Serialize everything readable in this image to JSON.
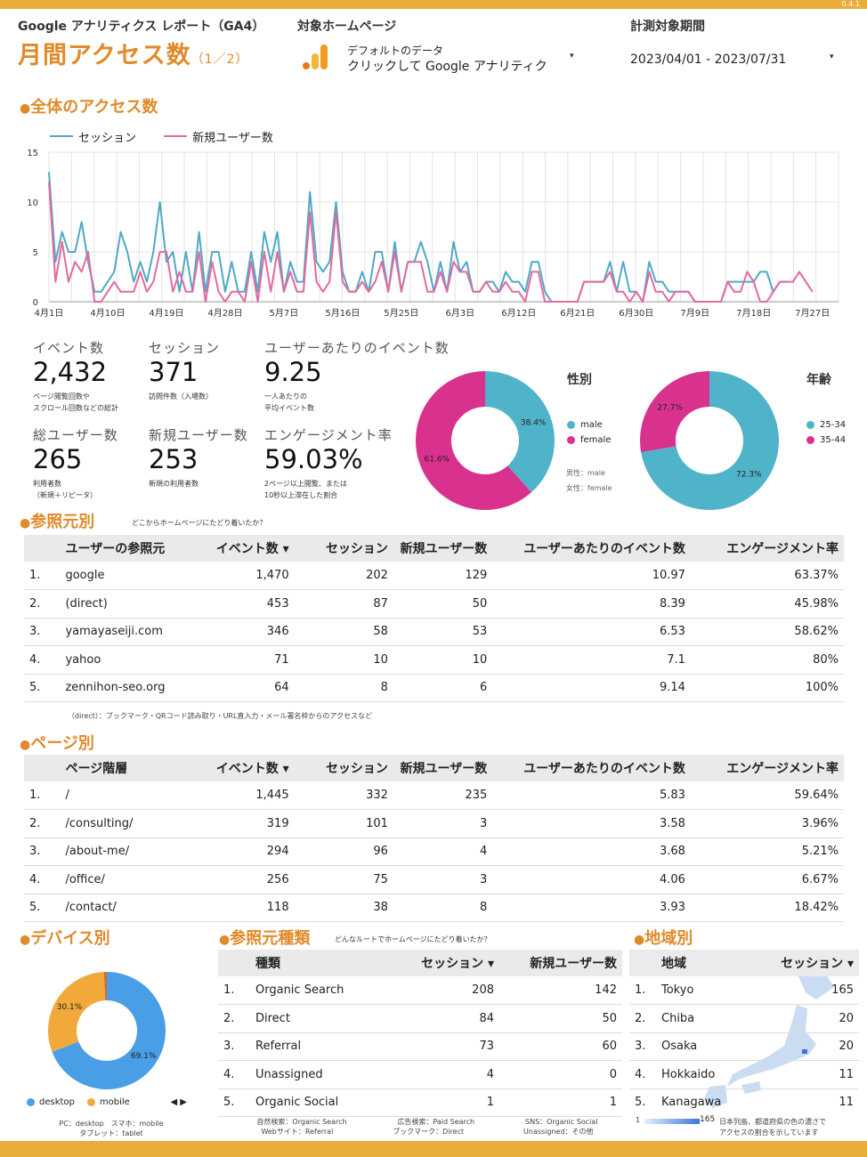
{
  "version": "0.4.1",
  "header": {
    "report_label": "Google アナリティクス レポート（GA4）",
    "title": "月間アクセス数",
    "title_page": "（1／2）",
    "target_label": "対象ホームページ",
    "target_line1": "デフォルトのデータ",
    "target_line2": "クリックして Google アナリティク",
    "period_label": "計測対象期間",
    "period_value": "2023/04/01 - 2023/07/31",
    "dropdown_glyph": "▾"
  },
  "overall": {
    "title": "全体のアクセス数"
  },
  "chart_data": [
    {
      "type": "line",
      "x_dates": [
        "2023-04-01",
        "2023-04-02",
        "2023-04-03",
        "2023-04-04",
        "2023-04-05",
        "2023-04-06",
        "2023-04-07",
        "2023-04-08",
        "2023-04-09",
        "2023-04-10",
        "2023-04-11",
        "2023-04-12",
        "2023-04-13",
        "2023-04-14",
        "2023-04-15",
        "2023-04-16",
        "2023-04-17",
        "2023-04-18",
        "2023-04-19",
        "2023-04-20",
        "2023-04-21",
        "2023-04-22",
        "2023-04-23",
        "2023-04-24",
        "2023-04-25",
        "2023-04-26",
        "2023-04-27",
        "2023-04-28",
        "2023-04-29",
        "2023-04-30",
        "2023-05-01",
        "2023-05-02",
        "2023-05-03",
        "2023-05-04",
        "2023-05-05",
        "2023-05-06",
        "2023-05-07",
        "2023-05-08",
        "2023-05-09",
        "2023-05-10",
        "2023-05-11",
        "2023-05-12",
        "2023-05-13",
        "2023-05-14",
        "2023-05-15",
        "2023-05-16",
        "2023-05-17",
        "2023-05-18",
        "2023-05-19",
        "2023-05-20",
        "2023-05-21",
        "2023-05-22",
        "2023-05-23",
        "2023-05-24",
        "2023-05-25",
        "2023-05-26",
        "2023-05-27",
        "2023-05-28",
        "2023-05-29",
        "2023-05-30",
        "2023-05-31",
        "2023-06-01",
        "2023-06-02",
        "2023-06-03",
        "2023-06-04",
        "2023-06-05",
        "2023-06-06",
        "2023-06-07",
        "2023-06-08",
        "2023-06-09",
        "2023-06-10",
        "2023-06-11",
        "2023-06-12",
        "2023-06-13",
        "2023-06-14",
        "2023-06-15",
        "2023-06-16",
        "2023-06-17",
        "2023-06-18",
        "2023-06-19",
        "2023-06-20",
        "2023-06-21",
        "2023-06-22",
        "2023-06-23",
        "2023-06-24",
        "2023-06-25",
        "2023-06-26",
        "2023-06-27",
        "2023-06-28",
        "2023-06-29",
        "2023-06-30",
        "2023-07-01",
        "2023-07-02",
        "2023-07-03",
        "2023-07-04",
        "2023-07-05",
        "2023-07-06",
        "2023-07-07",
        "2023-07-08",
        "2023-07-09",
        "2023-07-10",
        "2023-07-11",
        "2023-07-12",
        "2023-07-13",
        "2023-07-14",
        "2023-07-15",
        "2023-07-16",
        "2023-07-17",
        "2023-07-18",
        "2023-07-19",
        "2023-07-20",
        "2023-07-21",
        "2023-07-22",
        "2023-07-23",
        "2023-07-24",
        "2023-07-25",
        "2023-07-26",
        "2023-07-27",
        "2023-07-28",
        "2023-07-29",
        "2023-07-30",
        "2023-07-31"
      ],
      "x_tick_labels": [
        "4月1日",
        "4月10日",
        "4月19日",
        "4月28日",
        "5月7日",
        "5月16日",
        "5月25日",
        "6月3日",
        "6月12日",
        "6月21日",
        "6月30日",
        "7月9日",
        "7月18日",
        "7月27日"
      ],
      "series": [
        {
          "name": "セッション",
          "color": "#4fa9c6",
          "values": [
            13,
            4,
            7,
            5,
            5,
            8,
            4,
            1,
            1,
            2,
            3,
            7,
            5,
            2,
            4,
            2,
            5,
            10,
            4,
            5,
            1,
            5,
            1,
            7,
            1,
            5,
            5,
            1,
            4,
            1,
            1,
            5,
            1,
            7,
            4,
            7,
            1,
            4,
            2,
            2,
            11,
            4,
            3,
            4,
            10,
            3,
            1,
            1,
            3,
            1,
            5,
            5,
            1,
            6,
            1,
            4,
            4,
            6,
            4,
            1,
            4,
            1,
            6,
            3,
            4,
            1,
            1,
            2,
            2,
            1,
            3,
            2,
            2,
            1,
            4,
            4,
            1,
            0,
            0,
            0,
            0,
            0,
            2,
            2,
            2,
            2,
            4,
            1,
            4,
            1,
            1,
            0,
            4,
            2,
            2,
            1,
            1,
            1,
            1,
            0,
            0,
            0,
            0,
            0,
            2,
            2,
            2,
            2,
            2,
            3,
            3,
            1,
            2,
            2
          ]
        },
        {
          "name": "新規ユーザー数",
          "color": "#e26a9f",
          "values": [
            12,
            2,
            6,
            2,
            4,
            3,
            5,
            0,
            0,
            1,
            2,
            1,
            1,
            1,
            3,
            1,
            2,
            5,
            5,
            1,
            3,
            1,
            1,
            5,
            0,
            4,
            1,
            0,
            1,
            1,
            0,
            4,
            0,
            5,
            1,
            5,
            1,
            3,
            1,
            1,
            9,
            2,
            1,
            2,
            9,
            2,
            1,
            1,
            2,
            1,
            2,
            4,
            1,
            5,
            1,
            4,
            4,
            4,
            1,
            1,
            3,
            1,
            4,
            3,
            3,
            1,
            1,
            2,
            1,
            1,
            2,
            1,
            1,
            0,
            3,
            3,
            0,
            0,
            0,
            0,
            0,
            0,
            2,
            2,
            2,
            2,
            3,
            1,
            1,
            0,
            1,
            0,
            3,
            1,
            1,
            0,
            1,
            1,
            1,
            0,
            0,
            0,
            0,
            0,
            2,
            1,
            1,
            3,
            2,
            0,
            0,
            1,
            2,
            2,
            2,
            3,
            2,
            1
          ]
        }
      ],
      "ylim": [
        0,
        15
      ],
      "y_ticks": [
        0,
        5,
        10,
        15
      ],
      "grid": true,
      "legend": "top-left"
    },
    {
      "type": "pie",
      "title": "性別",
      "labels": [
        "male",
        "female"
      ],
      "values": [
        38.4,
        61.6
      ],
      "value_labels": [
        "38.4%",
        "61.6%"
      ],
      "colors": [
        "#4fb3c9",
        "#d9328e"
      ],
      "notes": [
        "男性：male",
        "女性：female"
      ]
    },
    {
      "type": "pie",
      "title": "年齢",
      "labels": [
        "25-34",
        "35-44"
      ],
      "values": [
        72.3,
        27.7
      ],
      "value_labels": [
        "72.3%",
        "27.7%"
      ],
      "colors": [
        "#4fb3c9",
        "#d9328e"
      ]
    },
    {
      "type": "pie",
      "labels": [
        "desktop",
        "mobile",
        "tablet"
      ],
      "values": [
        69.1,
        30.1,
        0.8
      ],
      "value_labels": [
        "69.1%",
        "30.1%",
        ""
      ],
      "colors": [
        "#4a9ee6",
        "#f0a93a",
        "#d46a3a"
      ],
      "legend_nav": "◀ ▶",
      "notes": [
        "PC：desktop　スマホ：mobile",
        "タブレット：tablet"
      ]
    },
    {
      "type": "table",
      "title": "参照元別",
      "note": "どこからホームページにたどり着いたか？",
      "columns": [
        "ユーザーの参照元",
        "イベント数 ▾",
        "セッション",
        "新規ユーザー数",
        "ユーザーあたりのイベント数",
        "エンゲージメント率"
      ],
      "rows": [
        [
          "1.",
          "google",
          "1,470",
          "202",
          "129",
          "10.97",
          "63.37%"
        ],
        [
          "2.",
          "(direct)",
          "453",
          "87",
          "50",
          "8.39",
          "45.98%"
        ],
        [
          "3.",
          "yamayaseiji.com",
          "346",
          "58",
          "53",
          "6.53",
          "58.62%"
        ],
        [
          "4.",
          "yahoo",
          "71",
          "10",
          "10",
          "7.1",
          "80%"
        ],
        [
          "5.",
          "zennihon-seo.org",
          "64",
          "8",
          "6",
          "9.14",
          "100%"
        ]
      ],
      "footnote": "（direct）：ブックマーク・QRコード読み取り・URL直入力・メール署名枠からのアクセスなど"
    },
    {
      "type": "table",
      "title": "ページ別",
      "columns": [
        "ページ階層",
        "イベント数 ▾",
        "セッション",
        "新規ユーザー数",
        "ユーザーあたりのイベント数",
        "エンゲージメント率"
      ],
      "rows": [
        [
          "1.",
          "/",
          "1,445",
          "332",
          "235",
          "5.83",
          "59.64%"
        ],
        [
          "2.",
          "/consulting/",
          "319",
          "101",
          "3",
          "3.58",
          "3.96%"
        ],
        [
          "3.",
          "/about-me/",
          "294",
          "96",
          "4",
          "3.68",
          "5.21%"
        ],
        [
          "4.",
          "/office/",
          "256",
          "75",
          "3",
          "4.06",
          "6.67%"
        ],
        [
          "5.",
          "/contact/",
          "118",
          "38",
          "8",
          "3.93",
          "18.42%"
        ]
      ]
    },
    {
      "type": "table",
      "title": "参照元種類",
      "note": "どんなルートでホームページにたどり着いたか？",
      "columns": [
        "種類",
        "セッション ▾",
        "新規ユーザー数"
      ],
      "rows": [
        [
          "1.",
          "Organic Search",
          "208",
          "142"
        ],
        [
          "2.",
          "Direct",
          "84",
          "50"
        ],
        [
          "3.",
          "Referral",
          "73",
          "60"
        ],
        [
          "4.",
          "Unassigned",
          "4",
          "0"
        ],
        [
          "5.",
          "Organic Social",
          "1",
          "1"
        ]
      ],
      "footnotes": [
        "自然検索：Organic Search",
        "広告検索：Paid Search",
        "SNS：Organic Social",
        "Webサイト：Referral",
        "ブックマーク：Direct",
        "Unassigned：その他"
      ]
    },
    {
      "type": "table",
      "title": "地域別",
      "columns": [
        "地域",
        "セッション ▾"
      ],
      "rows": [
        [
          "1.",
          "Tokyo",
          "165"
        ],
        [
          "2.",
          "Chiba",
          "20"
        ],
        [
          "3.",
          "Osaka",
          "20"
        ],
        [
          "4.",
          "Hokkaido",
          "11"
        ],
        [
          "5.",
          "Kanagawa",
          "11"
        ]
      ],
      "scale_min": "1",
      "scale_max": "165",
      "scale_note_1": "日本列島、都道府県の色の濃さで",
      "scale_note_2": "アクセスの割合を示しています"
    }
  ],
  "kpis": [
    {
      "label": "イベント数",
      "value": "2,432",
      "note1": "ページ閲覧回数や",
      "note2": "スクロール回数などの総計"
    },
    {
      "label": "セッション",
      "value": "371",
      "note1": "訪問件数（入場数）",
      "note2": ""
    },
    {
      "label": "ユーザーあたりのイベント数",
      "value": "9.25",
      "note1": "一人あたりの",
      "note2": "平均イベント数"
    },
    {
      "label": "総ユーザー数",
      "value": "265",
      "note1": "利用者数",
      "note2": "（新規＋リピータ）"
    },
    {
      "label": "新規ユーザー数",
      "value": "253",
      "note1": "新規の利用者数",
      "note2": ""
    },
    {
      "label": "エンゲージメント率",
      "value": "59.03%",
      "note1": "2ページ以上閲覧、または",
      "note2": "10秒以上滞在した割合"
    }
  ],
  "device": {
    "title": "デバイス別"
  }
}
